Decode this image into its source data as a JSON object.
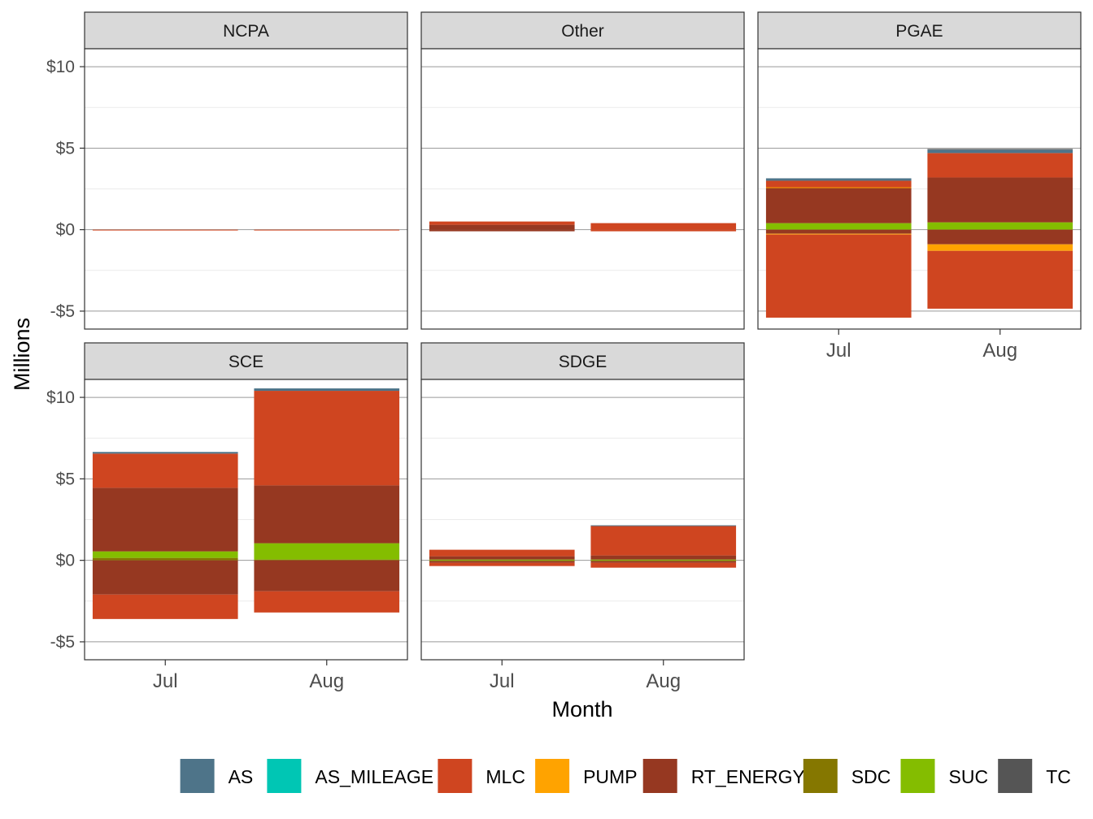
{
  "chart_data": {
    "type": "bar",
    "stacked": true,
    "facet_by": "Region",
    "xlabel": "Month",
    "ylabel": "Millions",
    "ylim": [
      -6.1,
      11.1
    ],
    "yticks": [
      -5,
      0,
      5,
      10
    ],
    "ytick_labels": [
      "-$5",
      "$0",
      "$5",
      "$10"
    ],
    "categories": [
      "Jul",
      "Aug"
    ],
    "grid": true,
    "legend_position": "bottom",
    "series": [
      {
        "name": "AS",
        "color": "#4E7489"
      },
      {
        "name": "AS_MILEAGE",
        "color": "#00C6B4"
      },
      {
        "name": "MLC",
        "color": "#CF4520"
      },
      {
        "name": "PUMP",
        "color": "#FFA300"
      },
      {
        "name": "RT_ENERGY",
        "color": "#963821"
      },
      {
        "name": "SDC",
        "color": "#857700"
      },
      {
        "name": "SUC",
        "color": "#84BD00"
      },
      {
        "name": "TC",
        "color": "#555555"
      }
    ],
    "facets": [
      {
        "name": "NCPA",
        "bars": {
          "Jul": {
            "pos": [],
            "neg": [
              {
                "s": "MLC",
                "v": -0.05
              }
            ]
          },
          "Aug": {
            "pos": [],
            "neg": [
              {
                "s": "MLC",
                "v": -0.05
              }
            ]
          }
        }
      },
      {
        "name": "Other",
        "bars": {
          "Jul": {
            "pos": [
              {
                "s": "RT_ENERGY",
                "v": 0.3
              },
              {
                "s": "MLC",
                "v": 0.2
              }
            ],
            "neg": [
              {
                "s": "RT_ENERGY",
                "v": -0.1
              }
            ]
          },
          "Aug": {
            "pos": [
              {
                "s": "MLC",
                "v": 0.4
              }
            ],
            "neg": [
              {
                "s": "MLC",
                "v": -0.1
              }
            ]
          }
        }
      },
      {
        "name": "PGAE",
        "bars": {
          "Jul": {
            "pos": [
              {
                "s": "SUC",
                "v": 0.4
              },
              {
                "s": "RT_ENERGY",
                "v": 2.15
              },
              {
                "s": "PUMP",
                "v": 0.05
              },
              {
                "s": "MLC",
                "v": 0.4
              },
              {
                "s": "AS",
                "v": 0.15
              }
            ],
            "neg": [
              {
                "s": "RT_ENERGY",
                "v": -0.25
              },
              {
                "s": "PUMP",
                "v": -0.05
              },
              {
                "s": "MLC",
                "v": -5.1
              }
            ]
          },
          "Aug": {
            "pos": [
              {
                "s": "SUC",
                "v": 0.45
              },
              {
                "s": "RT_ENERGY",
                "v": 2.75
              },
              {
                "s": "MLC",
                "v": 1.5
              },
              {
                "s": "AS",
                "v": 0.2
              },
              {
                "s": "TC",
                "v": 0.05
              }
            ],
            "neg": [
              {
                "s": "RT_ENERGY",
                "v": -0.9
              },
              {
                "s": "PUMP",
                "v": -0.4
              },
              {
                "s": "MLC",
                "v": -3.55
              }
            ]
          }
        }
      },
      {
        "name": "SCE",
        "bars": {
          "Jul": {
            "pos": [
              {
                "s": "SDC",
                "v": 0.15
              },
              {
                "s": "SUC",
                "v": 0.4
              },
              {
                "s": "RT_ENERGY",
                "v": 3.9
              },
              {
                "s": "MLC",
                "v": 2.1
              },
              {
                "s": "AS",
                "v": 0.1
              }
            ],
            "neg": [
              {
                "s": "RT_ENERGY",
                "v": -2.1
              },
              {
                "s": "MLC",
                "v": -1.5
              }
            ]
          },
          "Aug": {
            "pos": [
              {
                "s": "SDC",
                "v": 0.05
              },
              {
                "s": "SUC",
                "v": 1.0
              },
              {
                "s": "RT_ENERGY",
                "v": 3.55
              },
              {
                "s": "MLC",
                "v": 5.8
              },
              {
                "s": "AS",
                "v": 0.15
              }
            ],
            "neg": [
              {
                "s": "RT_ENERGY",
                "v": -1.9
              },
              {
                "s": "MLC",
                "v": -1.3
              }
            ]
          }
        }
      },
      {
        "name": "SDGE",
        "bars": {
          "Jul": {
            "pos": [
              {
                "s": "SUC",
                "v": 0.05
              },
              {
                "s": "RT_ENERGY",
                "v": 0.2
              },
              {
                "s": "MLC",
                "v": 0.4
              }
            ],
            "neg": [
              {
                "s": "SDC",
                "v": -0.05
              },
              {
                "s": "RT_ENERGY",
                "v": -0.1
              },
              {
                "s": "MLC",
                "v": -0.2
              }
            ]
          },
          "Aug": {
            "pos": [
              {
                "s": "SUC",
                "v": 0.05
              },
              {
                "s": "RT_ENERGY",
                "v": 0.25
              },
              {
                "s": "MLC",
                "v": 1.8
              },
              {
                "s": "AS",
                "v": 0.05
              }
            ],
            "neg": [
              {
                "s": "SDC",
                "v": -0.05
              },
              {
                "s": "RT_ENERGY",
                "v": -0.1
              },
              {
                "s": "MLC",
                "v": -0.3
              }
            ]
          }
        }
      }
    ]
  }
}
